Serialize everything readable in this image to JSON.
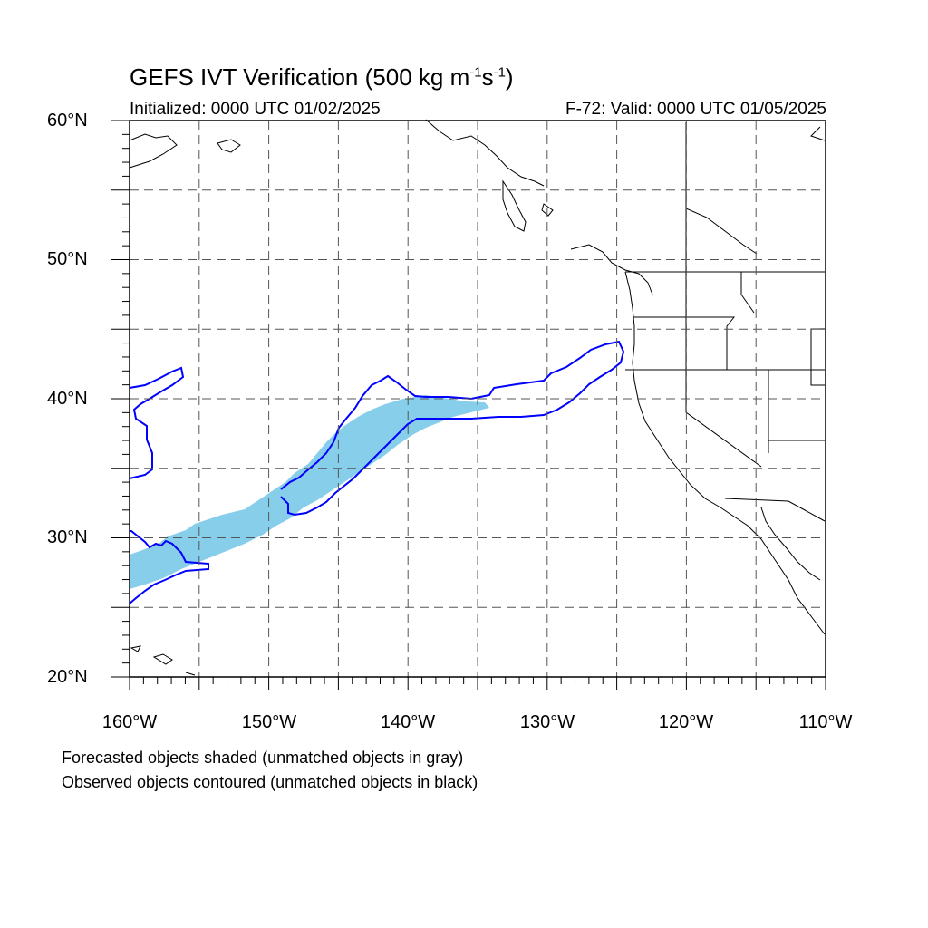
{
  "title": {
    "prefix": "GEFS IVT Verification (500 kg m",
    "exp1": "-1",
    "mid": "s",
    "exp2": "-1",
    "suffix": ")"
  },
  "initialized": "Initialized: 0000 UTC 01/02/2025",
  "valid": "F-72: Valid: 0000 UTC 01/05/2025",
  "lat_labels": [
    "60°N",
    "50°N",
    "40°N",
    "30°N",
    "20°N"
  ],
  "lon_labels": [
    "160°W",
    "150°W",
    "140°W",
    "130°W",
    "120°W",
    "110°W"
  ],
  "notes": [
    "Forecasted objects shaded (unmatched objects in gray)",
    "Observed objects contoured (unmatched objects in black)"
  ],
  "colors": {
    "forecast_fill": "#87ceeb",
    "observed_contour": "#0000ff",
    "coast": "#000000",
    "grid": "#555555"
  }
}
